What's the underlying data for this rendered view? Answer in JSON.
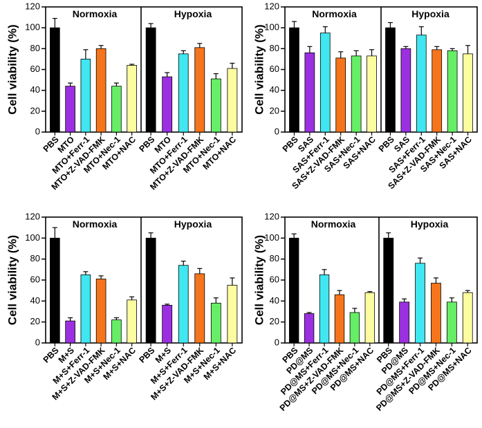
{
  "colors": [
    "#000000",
    "#9b30e0",
    "#40e6f0",
    "#f6741b",
    "#66ee66",
    "#fcfca0"
  ],
  "chart_data": [
    {
      "type": "bar",
      "ylabel": "Cell viability (%)",
      "ylim": [
        0,
        120
      ],
      "yticks": [
        0,
        20,
        40,
        60,
        80,
        100,
        120
      ],
      "categories": [
        "PBS",
        "MTO",
        "MTO+Ferr-1",
        "MTO+Z-VAD-FMK",
        "MTO+Nec-1",
        "MTO+NAC"
      ],
      "groups": [
        {
          "name": "Normoxia",
          "values": [
            100,
            44,
            70,
            80,
            44,
            64
          ],
          "errors": [
            9,
            3,
            9,
            3,
            3,
            1
          ]
        },
        {
          "name": "Hypoxia",
          "values": [
            100,
            53,
            75,
            81,
            51,
            61
          ],
          "errors": [
            4,
            4,
            3,
            4,
            5,
            5
          ]
        }
      ]
    },
    {
      "type": "bar",
      "ylabel": "Cell viability (%)",
      "ylim": [
        0,
        120
      ],
      "yticks": [
        0,
        20,
        40,
        60,
        80,
        100,
        120
      ],
      "categories": [
        "PBS",
        "SAS",
        "SAS+Ferr-1",
        "SAS+Z-VAD-FMK",
        "SAS+Nec-1",
        "SAS+NAC"
      ],
      "groups": [
        {
          "name": "Normoxia",
          "values": [
            100,
            76,
            95,
            71,
            73,
            73
          ],
          "errors": [
            6,
            6,
            6,
            6,
            5,
            6
          ]
        },
        {
          "name": "Hypoxia",
          "values": [
            100,
            80,
            93,
            79,
            78,
            75
          ],
          "errors": [
            5,
            2,
            8,
            3,
            2,
            8
          ]
        }
      ]
    },
    {
      "type": "bar",
      "ylabel": "Cell viability (%)",
      "ylim": [
        0,
        120
      ],
      "yticks": [
        0,
        20,
        40,
        60,
        80,
        100,
        120
      ],
      "categories": [
        "PBS",
        "M+S",
        "M+S+Ferr-1",
        "M+S+Z-VAD-FMK",
        "M+S+Nec-1",
        "M+S+NAC"
      ],
      "groups": [
        {
          "name": "Normoxia",
          "values": [
            100,
            21,
            65,
            61,
            22,
            41
          ],
          "errors": [
            10,
            3,
            3,
            3,
            2,
            3
          ]
        },
        {
          "name": "Hypoxia",
          "values": [
            100,
            36,
            74,
            66,
            38,
            55
          ],
          "errors": [
            5,
            1,
            4,
            5,
            5,
            7
          ]
        }
      ]
    },
    {
      "type": "bar",
      "ylabel": "Cell viability (%)",
      "ylim": [
        0,
        120
      ],
      "yticks": [
        0,
        20,
        40,
        60,
        80,
        100,
        120
      ],
      "categories": [
        "PBS",
        "PD@MS",
        "PD@MS+Ferr-1",
        "PD@MS+Z-VAD-FMK",
        "PD@MS+Nec-1",
        "PD@MS+NAC"
      ],
      "groups": [
        {
          "name": "Normoxia",
          "values": [
            100,
            28,
            65,
            46,
            29,
            48
          ],
          "errors": [
            4,
            1,
            5,
            4,
            4,
            1
          ]
        },
        {
          "name": "Hypoxia",
          "values": [
            100,
            39,
            76,
            57,
            39,
            48
          ],
          "errors": [
            5,
            3,
            5,
            5,
            4,
            2
          ]
        }
      ]
    }
  ]
}
